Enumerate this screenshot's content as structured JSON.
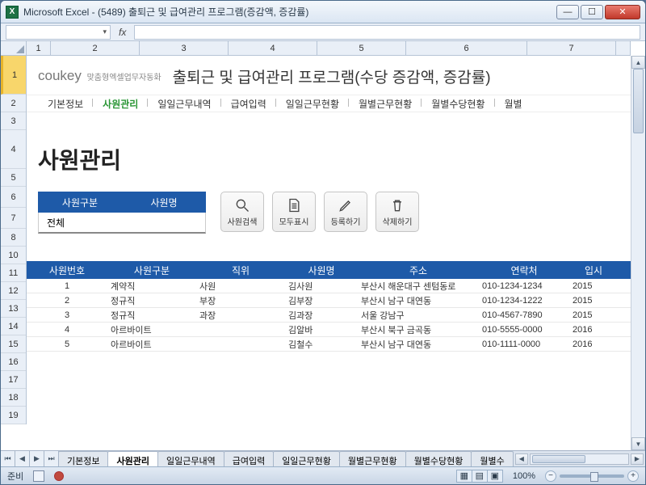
{
  "window": {
    "title": "Microsoft Excel - (5489) 출퇴근 및 급여관리 프로그램(증감액, 증감률)"
  },
  "formulaBar": {
    "nameBox": "",
    "fx": "fx"
  },
  "colHeaders": {
    "labels": [
      "1",
      "2",
      "3",
      "4",
      "5",
      "6",
      "7"
    ],
    "widths": [
      30,
      110,
      110,
      110,
      110,
      150,
      110,
      30
    ]
  },
  "rowHeaders": [
    "1",
    "2",
    "3",
    "4",
    "5",
    "6",
    "7",
    "8",
    "10",
    "11",
    "12",
    "13",
    "14",
    "15",
    "16",
    "17",
    "18",
    "19"
  ],
  "content": {
    "logo": {
      "brand": "coukey",
      "sub": "맞춤형엑셀업무자동화"
    },
    "appTitle": "출퇴근 및 급여관리 프로그램(수당 증감액, 증감률)",
    "nav": [
      "기본정보",
      "사원관리",
      "일일근무내역",
      "급여입력",
      "일일근무현황",
      "월별근무현황",
      "월별수당현황",
      "월별"
    ],
    "navActive": 1,
    "pageTitle": "사원관리",
    "filter": {
      "h1": "사원구분",
      "h2": "사원명",
      "value": "전체"
    },
    "actions": {
      "search": "사원검색",
      "showAll": "모두표시",
      "register": "등록하기",
      "delete": "삭제하기"
    },
    "table": {
      "columns": [
        "사원번호",
        "사원구분",
        "직위",
        "사원명",
        "주소",
        "연락처",
        "입시"
      ],
      "rows": [
        [
          "1",
          "계약직",
          "사원",
          "김사원",
          "부산시 해운대구 센텀동로",
          "010-1234-1234",
          "2015"
        ],
        [
          "2",
          "정규직",
          "부장",
          "김부장",
          "부산시 남구 대연동",
          "010-1234-1222",
          "2015"
        ],
        [
          "3",
          "정규직",
          "과장",
          "김과장",
          "서울 강남구",
          "010-4567-7890",
          "2015"
        ],
        [
          "4",
          "아르바이트",
          "",
          "김알바",
          "부산시 북구 금곡동",
          "010-5555-0000",
          "2016"
        ],
        [
          "5",
          "아르바이트",
          "",
          "김철수",
          "부산시 남구 대연동",
          "010-1111-0000",
          "2016"
        ]
      ]
    }
  },
  "sheetTabs": [
    "기본정보",
    "사원관리",
    "일일근무내역",
    "급여입력",
    "일일근무현황",
    "월별근무현황",
    "월별수당현황",
    "월별수"
  ],
  "sheetTabActive": 1,
  "status": {
    "ready": "준비",
    "zoom": "100%"
  }
}
